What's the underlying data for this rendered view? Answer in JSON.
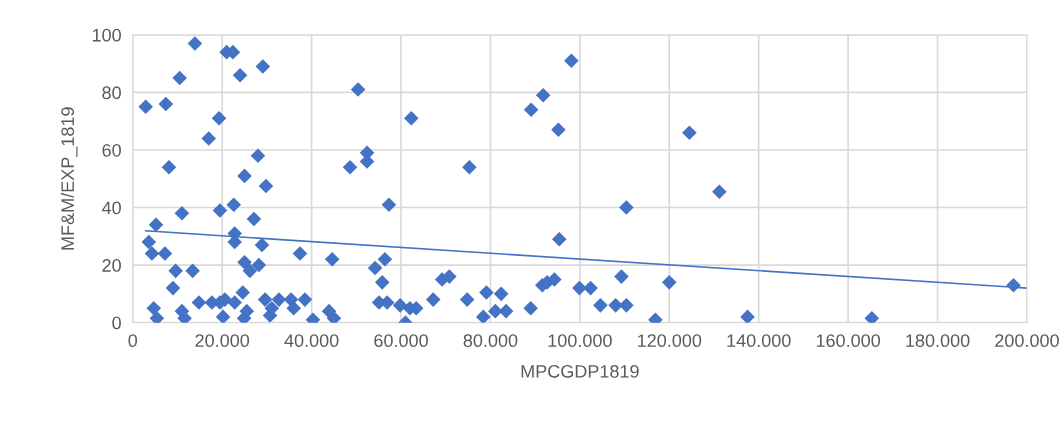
{
  "chart_data": {
    "type": "scatter",
    "xlabel": "MPCGDP1819",
    "ylabel": "MF&M/EXP_1819",
    "grid": true,
    "marker": "diamond",
    "xlim": [
      0,
      200000
    ],
    "ylim": [
      0,
      100
    ],
    "xticks": [
      0,
      {
        "value": 20000,
        "label": "20.000"
      },
      {
        "value": 40000,
        "label": "40.000"
      },
      {
        "value": 60000,
        "label": "60.000"
      },
      {
        "value": 80000,
        "label": "80.000"
      },
      {
        "value": 100000,
        "label": "100.000"
      },
      {
        "value": 120000,
        "label": "120.000"
      },
      {
        "value": 140000,
        "label": "140.000"
      },
      {
        "value": 160000,
        "label": "160.000"
      },
      {
        "value": 180000,
        "label": "180.000"
      },
      {
        "value": 200000,
        "label": "200.000"
      }
    ],
    "yticks": [
      0,
      20,
      40,
      60,
      80,
      100
    ],
    "series": [
      {
        "color": "#4472c4",
        "x": [
          2900,
          3600,
          4300,
          5200,
          4700,
          5400,
          7200,
          7400,
          8100,
          9000,
          9600,
          10500,
          11000,
          11000,
          11600,
          13400,
          13900,
          14800,
          17000,
          17700,
          19300,
          19500,
          19500,
          20200,
          20600,
          21000,
          22400,
          22600,
          22800,
          22800,
          22800,
          24000,
          25000,
          25000,
          24600,
          24900,
          25500,
          26200,
          27100,
          28000,
          28200,
          28900,
          29100,
          29600,
          29800,
          30700,
          31100,
          32700,
          35400,
          36000,
          37400,
          38500,
          40300,
          43900,
          44600,
          45000,
          48600,
          50400,
          52400,
          52400,
          54200,
          55100,
          55800,
          56400,
          56900,
          57300,
          59800,
          61000,
          62000,
          62300,
          63400,
          67200,
          69200,
          70800,
          75300,
          74800,
          78400,
          79100,
          81100,
          82400,
          83500,
          89000,
          89100,
          91600,
          91800,
          92700,
          94300,
          95200,
          95400,
          98100,
          99900,
          102400,
          104600,
          108000,
          110400,
          109300,
          110400,
          116900,
          120000,
          124500,
          131200,
          137500,
          165300,
          197000
        ],
        "values": [
          75,
          28,
          24,
          34,
          5,
          1.5,
          24,
          76,
          54,
          12,
          18,
          85,
          38,
          4,
          1.5,
          18,
          97,
          7,
          64,
          7,
          71,
          39,
          7,
          2,
          8,
          94,
          94,
          41,
          31,
          28,
          7,
          86,
          51,
          21,
          10.5,
          1.5,
          4,
          18,
          36,
          58,
          20,
          27,
          89,
          8,
          47.5,
          2.5,
          5,
          8,
          8,
          5,
          24,
          8,
          1,
          4,
          22,
          1.5,
          54,
          81,
          59,
          56,
          19,
          7,
          14,
          22,
          7,
          41,
          6,
          0,
          5,
          71,
          5,
          8,
          15,
          16,
          54,
          8,
          2,
          10.5,
          4,
          10,
          4,
          5,
          74,
          13,
          79,
          14,
          15,
          67,
          29,
          91,
          12,
          12,
          6,
          6,
          6,
          16,
          40,
          1,
          14,
          66,
          45.5,
          2,
          1.5,
          13
        ]
      },
      {
        "type": "line",
        "color": "#4472c4",
        "marker": "none",
        "x": [
          2900,
          200000
        ],
        "values": [
          31.9,
          12
        ]
      }
    ]
  }
}
